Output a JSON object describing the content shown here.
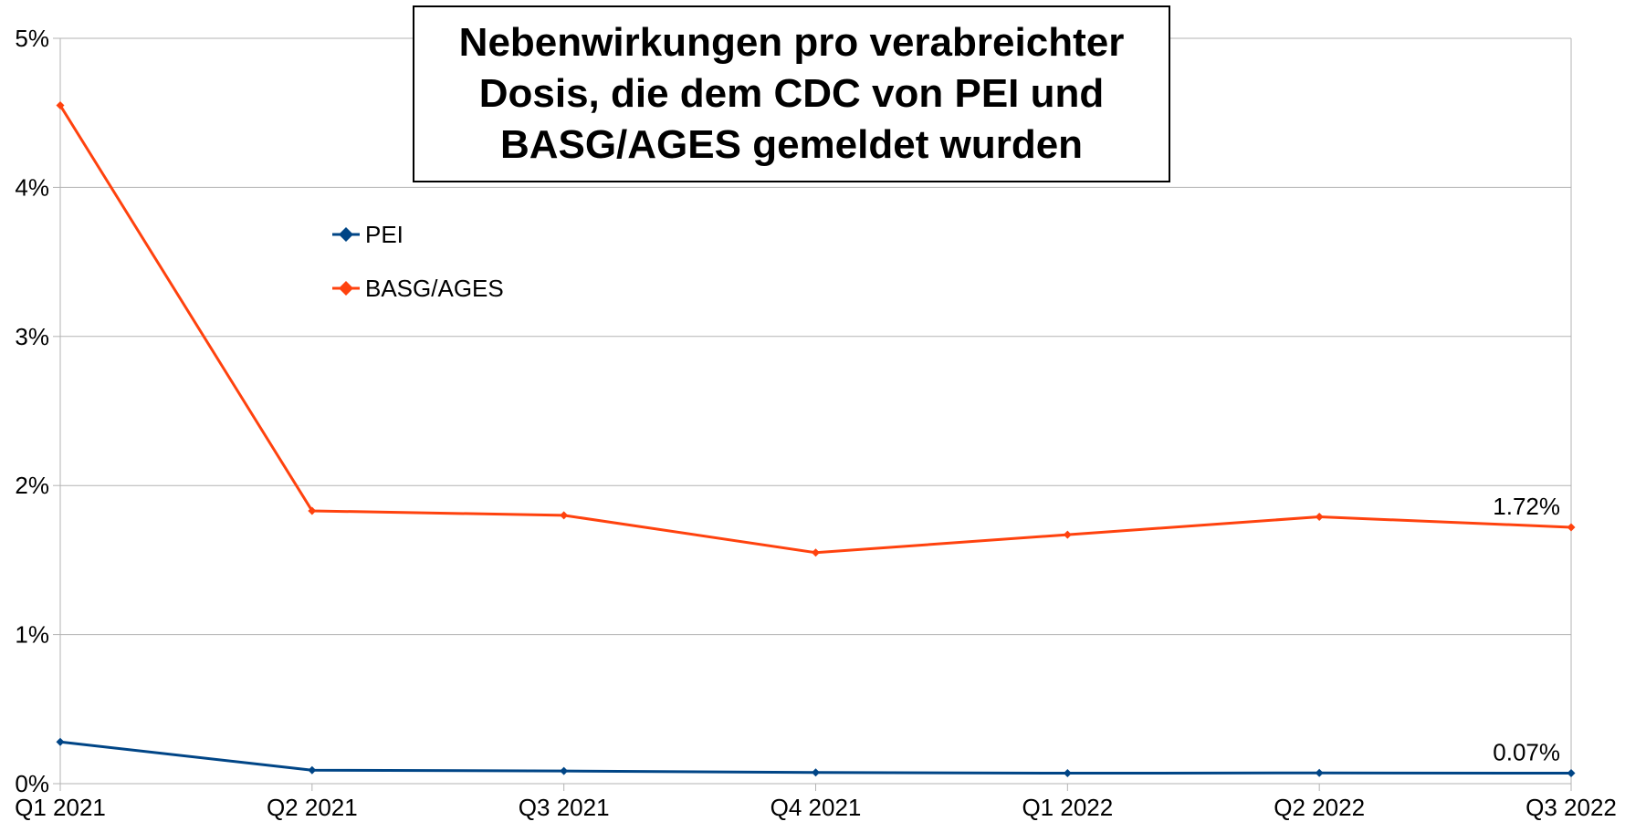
{
  "chart_data": {
    "type": "line",
    "title": "Nebenwirkungen pro verabreichter\nDosis, die dem CDC von PEI und\nBASG/AGES gemeldet wurden",
    "categories": [
      "Q1 2021",
      "Q2 2021",
      "Q3 2021",
      "Q4 2021",
      "Q1 2022",
      "Q2 2022",
      "Q3 2022"
    ],
    "series": [
      {
        "name": "PEI",
        "color": "#004586",
        "values": [
          0.28,
          0.09,
          0.085,
          0.075,
          0.07,
          0.072,
          0.07
        ],
        "end_label": "0.07%"
      },
      {
        "name": "BASG/AGES",
        "color": "#ff420e",
        "values": [
          4.55,
          1.83,
          1.8,
          1.55,
          1.67,
          1.79,
          1.72
        ],
        "end_label": "1.72%"
      }
    ],
    "yticks": [
      "0%",
      "1%",
      "2%",
      "3%",
      "4%",
      "5%"
    ],
    "ylim": [
      0,
      5
    ],
    "grid": true,
    "legend_position": "top-left"
  }
}
